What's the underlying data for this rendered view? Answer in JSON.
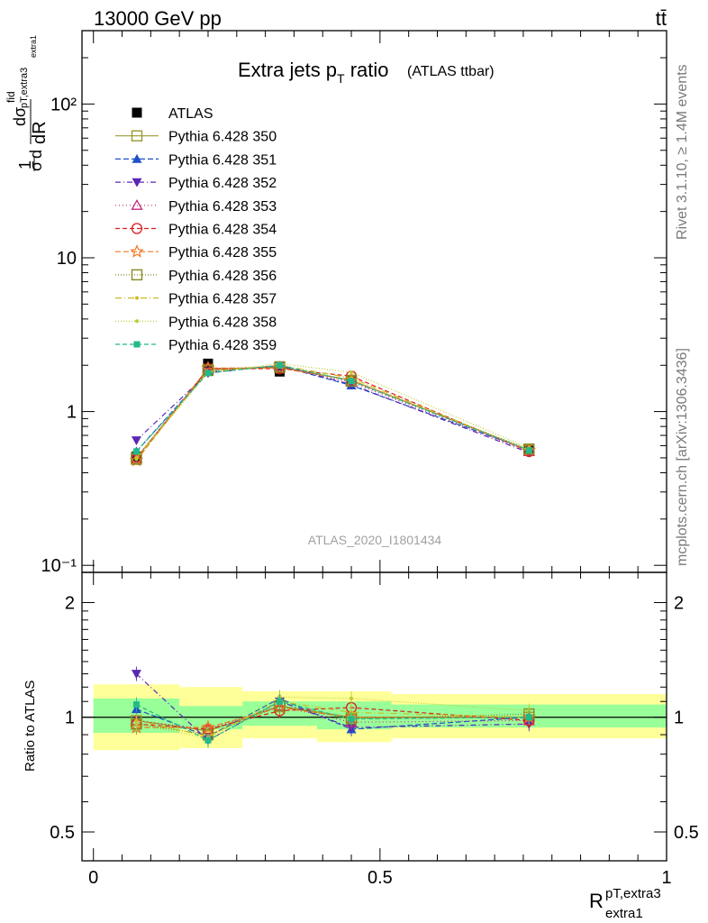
{
  "header": {
    "energy_label": "13000 GeV pp",
    "process_label": "tt̄",
    "side_rivet": "Rivet 3.1.10, ≥ 1.4M events",
    "side_mcplots": "mcplots.cern.ch [arXiv:1306.3436]"
  },
  "chart_data": [
    {
      "type": "line",
      "panel": "main",
      "title": "Extra jets p",
      "title_sub": "T",
      "title_rest": " ratio",
      "title_small": "(ATLAS ttbar)",
      "watermark": "ATLAS_2020_I1801434",
      "ylabel_main": "dR",
      "ylabel_sub": "pT,extra3",
      "ylabel_subsub": "extra1",
      "ylabel_fid": "fid",
      "y_scale": "log",
      "ylim": [
        0.09,
        300
      ],
      "xlim": [
        -0.02,
        1.0
      ],
      "y_ticks": [
        {
          "value": 0.1,
          "label": "10⁻¹"
        },
        {
          "value": 1,
          "label": "1"
        },
        {
          "value": 10,
          "label": "10"
        },
        {
          "value": 100,
          "label": "10²"
        }
      ],
      "x": [
        0.075,
        0.2,
        0.325,
        0.45,
        0.76
      ],
      "legend_position": "top-left",
      "series": [
        {
          "name": "ATLAS",
          "color": "#000000",
          "marker": "square-filled",
          "dash": "",
          "values": [
            0.51,
            2.05,
            1.82,
            1.6,
            0.56
          ],
          "errors": [
            0.02,
            0.06,
            0.05,
            0.05,
            0.02
          ]
        },
        {
          "name": "Pythia 6.428 350",
          "color": "#999933",
          "marker": "square-open",
          "dash": "",
          "values": [
            0.5,
            1.88,
            1.95,
            1.6,
            0.56
          ]
        },
        {
          "name": "Pythia 6.428 351",
          "color": "#1f50c8",
          "marker": "triangle-up-filled",
          "dash": "6,3",
          "values": [
            0.55,
            1.82,
            1.98,
            1.48,
            0.56
          ]
        },
        {
          "name": "Pythia 6.428 352",
          "color": "#5a28b4",
          "marker": "triangle-down-filled",
          "dash": "6,3,1,3",
          "values": [
            0.65,
            1.78,
            2.0,
            1.5,
            0.54
          ]
        },
        {
          "name": "Pythia 6.428 353",
          "color": "#c8287d",
          "marker": "triangle-up-open",
          "dash": "1,3",
          "values": [
            0.5,
            1.9,
            1.95,
            1.55,
            0.55
          ]
        },
        {
          "name": "Pythia 6.428 354",
          "color": "#dc1e1e",
          "marker": "circle-open",
          "dash": "5,3",
          "values": [
            0.49,
            1.9,
            1.9,
            1.7,
            0.55
          ]
        },
        {
          "name": "Pythia 6.428 355",
          "color": "#ee7722",
          "marker": "star-open",
          "dash": "6,3",
          "values": [
            0.48,
            1.92,
            1.92,
            1.6,
            0.56
          ]
        },
        {
          "name": "Pythia 6.428 356",
          "color": "#888822",
          "marker": "square-open",
          "dash": "1,2",
          "values": [
            0.49,
            1.85,
            1.95,
            1.58,
            0.57
          ]
        },
        {
          "name": "Pythia 6.428 357",
          "color": "#ccbb22",
          "marker": "dot",
          "dash": "7,3,1,3",
          "values": [
            0.5,
            1.82,
            2.0,
            1.65,
            0.56
          ]
        },
        {
          "name": "Pythia 6.428 358",
          "color": "#bbcc33",
          "marker": "dot",
          "dash": "1,2",
          "values": [
            0.49,
            1.8,
            2.05,
            1.8,
            0.58
          ]
        },
        {
          "name": "Pythia 6.428 359",
          "color": "#22bb88",
          "marker": "square-filled-small",
          "dash": "5,3",
          "values": [
            0.55,
            1.78,
            2.0,
            1.58,
            0.56
          ]
        }
      ]
    },
    {
      "type": "line",
      "panel": "ratio",
      "ylabel": "Ratio to ATLAS",
      "xlabel_main": "R",
      "xlabel_sup": "pT,extra3",
      "xlabel_sub": "extra1",
      "y_scale": "log",
      "ylim": [
        0.42,
        2.4
      ],
      "xlim": [
        -0.02,
        1.0
      ],
      "y_ticks": [
        {
          "value": 0.5,
          "label": "0.5"
        },
        {
          "value": 1,
          "label": "1"
        },
        {
          "value": 2,
          "label": "2"
        }
      ],
      "x_ticks": [
        {
          "value": 0,
          "label": "0"
        },
        {
          "value": 0.5,
          "label": "0.5"
        },
        {
          "value": 1,
          "label": "1"
        }
      ],
      "bands": [
        {
          "x0": 0.0,
          "x1": 0.15,
          "green": [
            0.91,
            1.12
          ],
          "yellow": [
            0.82,
            1.22
          ]
        },
        {
          "x0": 0.15,
          "x1": 0.26,
          "green": [
            0.93,
            1.07
          ],
          "yellow": [
            0.83,
            1.2
          ]
        },
        {
          "x0": 0.26,
          "x1": 0.39,
          "green": [
            0.95,
            1.1
          ],
          "yellow": [
            0.88,
            1.17
          ]
        },
        {
          "x0": 0.39,
          "x1": 0.52,
          "green": [
            0.93,
            1.1
          ],
          "yellow": [
            0.86,
            1.17
          ]
        },
        {
          "x0": 0.52,
          "x1": 1.0,
          "green": [
            0.94,
            1.08
          ],
          "yellow": [
            0.88,
            1.15
          ]
        }
      ],
      "x": [
        0.075,
        0.2,
        0.325,
        0.45,
        0.76
      ],
      "series": [
        {
          "name": "Pythia 6.428 350",
          "values": [
            0.98,
            0.92,
            1.07,
            1.0,
            1.0
          ]
        },
        {
          "name": "Pythia 6.428 351",
          "values": [
            1.05,
            0.89,
            1.12,
            0.93,
            1.0
          ]
        },
        {
          "name": "Pythia 6.428 352",
          "values": [
            1.3,
            0.87,
            1.1,
            0.94,
            0.96
          ]
        },
        {
          "name": "Pythia 6.428 353",
          "values": [
            0.98,
            0.93,
            1.07,
            0.97,
            0.98
          ]
        },
        {
          "name": "Pythia 6.428 354",
          "values": [
            0.96,
            0.93,
            1.04,
            1.06,
            0.98
          ]
        },
        {
          "name": "Pythia 6.428 355",
          "values": [
            0.94,
            0.94,
            1.06,
            1.0,
            1.0
          ]
        },
        {
          "name": "Pythia 6.428 356",
          "values": [
            0.96,
            0.9,
            1.07,
            0.99,
            1.02
          ]
        },
        {
          "name": "Pythia 6.428 357",
          "values": [
            0.98,
            0.89,
            1.1,
            1.03,
            1.0
          ]
        },
        {
          "name": "Pythia 6.428 358",
          "values": [
            0.96,
            0.88,
            1.13,
            1.12,
            1.04
          ]
        },
        {
          "name": "Pythia 6.428 359",
          "values": [
            1.08,
            0.87,
            1.1,
            0.99,
            1.0
          ]
        }
      ]
    }
  ]
}
